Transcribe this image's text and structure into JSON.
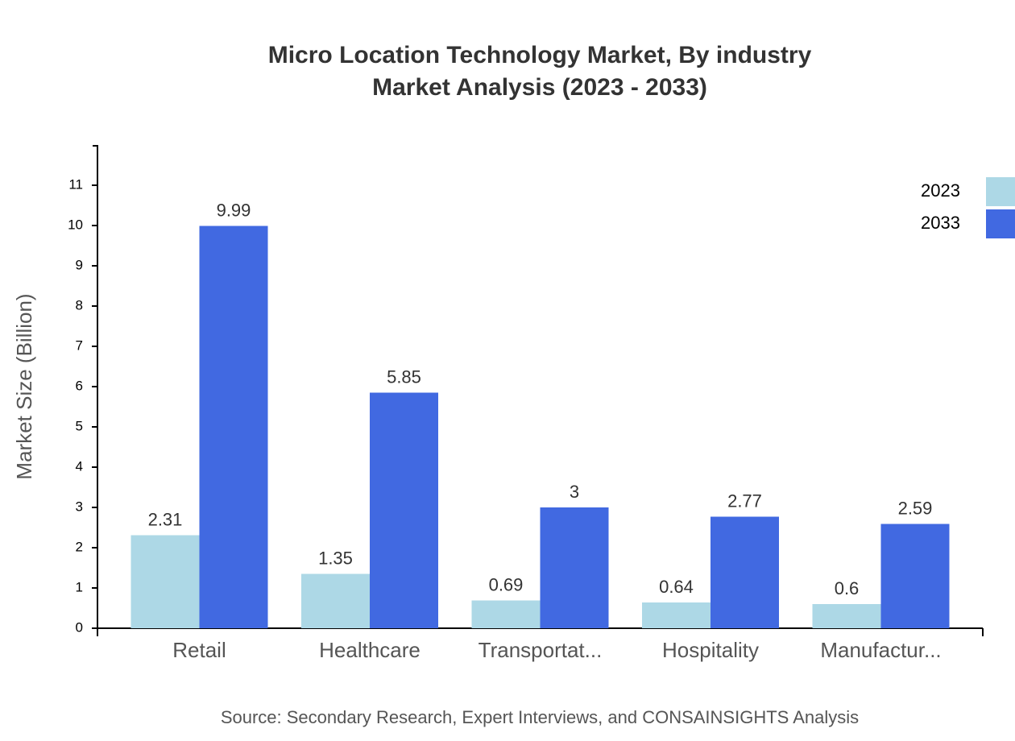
{
  "chart_data": {
    "type": "bar",
    "title": "Micro Location Technology Market, By industry",
    "subtitle": "Market Analysis (2023 - 2033)",
    "y_label": "Market Size (Billion)",
    "source": "Source: Secondary Research, Expert Interviews, and CONSAINSIGHTS Analysis",
    "categories": [
      "Retail",
      "Healthcare",
      "Transportat...",
      "Hospitality",
      "Manufactur..."
    ],
    "series": [
      {
        "name": "2023",
        "color": "#add8e6",
        "values": [
          2.31,
          1.35,
          0.69,
          0.64,
          0.6
        ]
      },
      {
        "name": "2033",
        "color": "#4169e1",
        "values": [
          9.99,
          5.85,
          3,
          2.77,
          2.59
        ]
      }
    ],
    "ylim": [
      0,
      12
    ],
    "yticks": [
      0,
      1,
      2,
      3,
      4,
      5,
      6,
      7,
      8,
      9,
      10,
      11
    ]
  }
}
